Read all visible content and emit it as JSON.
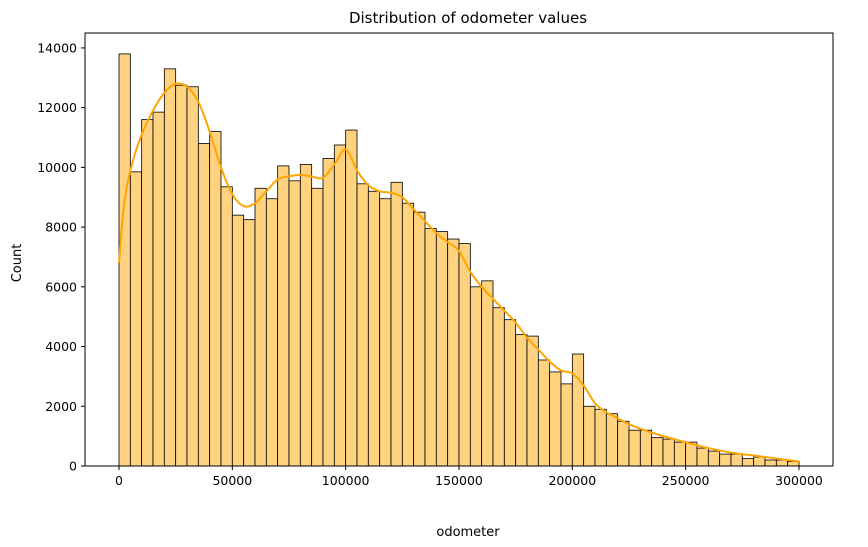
{
  "chart_data": {
    "type": "bar",
    "title": "Distribution of odometer values",
    "xlabel": "odometer",
    "ylabel": "Count",
    "xlim": [
      -15000,
      315000
    ],
    "ylim": [
      0,
      14500
    ],
    "xticks": [
      0,
      50000,
      100000,
      150000,
      200000,
      250000,
      300000
    ],
    "yticks": [
      0,
      2000,
      4000,
      6000,
      8000,
      10000,
      12000,
      14000
    ],
    "grid": false,
    "bin_start": 0,
    "bin_width": 5000,
    "values": [
      13800,
      9850,
      11600,
      11850,
      13300,
      12750,
      12700,
      10800,
      11200,
      9350,
      8400,
      8250,
      9300,
      8950,
      10050,
      9550,
      10100,
      9300,
      10300,
      10750,
      11250,
      9450,
      9200,
      8950,
      9500,
      8800,
      8500,
      7950,
      7850,
      7600,
      7450,
      6000,
      6200,
      5300,
      4900,
      4400,
      4350,
      3550,
      3150,
      2750,
      3750,
      2000,
      1900,
      1750,
      1500,
      1200,
      1200,
      950,
      900,
      800,
      800,
      600,
      500,
      400,
      400,
      250,
      300,
      200,
      200,
      150
    ],
    "kde": {
      "x": [
        0,
        2000,
        5000,
        10000,
        15000,
        20000,
        25000,
        30000,
        35000,
        40000,
        45000,
        50000,
        55000,
        60000,
        65000,
        70000,
        75000,
        80000,
        85000,
        90000,
        95000,
        100000,
        105000,
        110000,
        115000,
        120000,
        125000,
        130000,
        135000,
        140000,
        145000,
        150000,
        155000,
        160000,
        165000,
        170000,
        175000,
        180000,
        185000,
        190000,
        195000,
        200000,
        205000,
        210000,
        215000,
        220000,
        225000,
        230000,
        240000,
        250000,
        260000,
        270000,
        280000,
        290000,
        300000
      ],
      "y": [
        6800,
        8600,
        9900,
        11100,
        11900,
        12500,
        12800,
        12700,
        12200,
        11200,
        10000,
        9100,
        8700,
        8800,
        9200,
        9600,
        9700,
        9750,
        9700,
        9650,
        10100,
        10600,
        9900,
        9400,
        9200,
        9150,
        9000,
        8600,
        8200,
        7800,
        7500,
        7200,
        6500,
        6000,
        5600,
        5200,
        4800,
        4300,
        3900,
        3500,
        3200,
        3100,
        2700,
        2100,
        1800,
        1600,
        1400,
        1250,
        1000,
        800,
        600,
        450,
        350,
        250,
        150
      ]
    },
    "bar_color": "#ffd27f",
    "bar_edge_color": "#000000",
    "kde_color": "#ffa500"
  }
}
